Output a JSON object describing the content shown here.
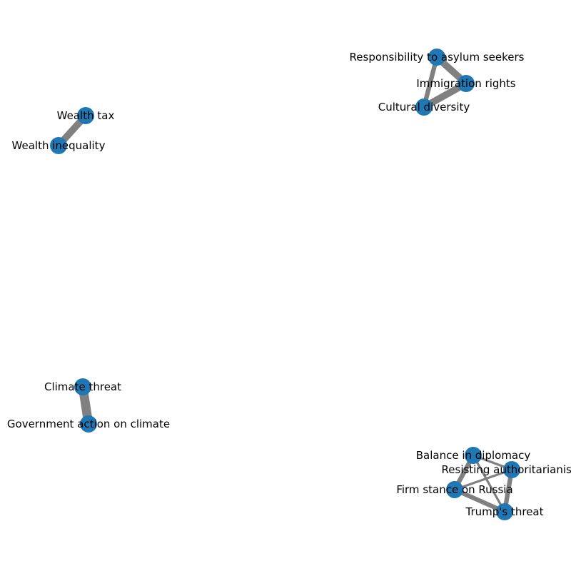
{
  "graph": {
    "node_color": "#1f77b4",
    "edge_color": "#808080",
    "nodes": [
      {
        "id": "wealth_tax",
        "label": "Wealth tax"
      },
      {
        "id": "wealth_inequality",
        "label": "Wealth inequality"
      },
      {
        "id": "asylum",
        "label": "Responsibility to asylum seekers"
      },
      {
        "id": "immigration",
        "label": "Immigration rights"
      },
      {
        "id": "cultural",
        "label": "Cultural diversity"
      },
      {
        "id": "climate_threat",
        "label": "Climate threat"
      },
      {
        "id": "gov_climate",
        "label": "Government action on climate"
      },
      {
        "id": "balance",
        "label": "Balance in diplomacy"
      },
      {
        "id": "resisting",
        "label": "Resisting authoritarianism"
      },
      {
        "id": "russia",
        "label": "Firm stance on Russia"
      },
      {
        "id": "trump",
        "label": "Trump's threat"
      }
    ],
    "edges": [
      {
        "source": "wealth_tax",
        "target": "wealth_inequality",
        "weight": 3
      },
      {
        "source": "asylum",
        "target": "immigration",
        "weight": 3
      },
      {
        "source": "asylum",
        "target": "cultural",
        "weight": 2
      },
      {
        "source": "immigration",
        "target": "cultural",
        "weight": 3
      },
      {
        "source": "climate_threat",
        "target": "gov_climate",
        "weight": 4
      },
      {
        "source": "balance",
        "target": "resisting",
        "weight": 1
      },
      {
        "source": "balance",
        "target": "russia",
        "weight": 2
      },
      {
        "source": "balance",
        "target": "trump",
        "weight": 1
      },
      {
        "source": "resisting",
        "target": "russia",
        "weight": 1
      },
      {
        "source": "resisting",
        "target": "trump",
        "weight": 2
      },
      {
        "source": "russia",
        "target": "trump",
        "weight": 2
      }
    ]
  }
}
